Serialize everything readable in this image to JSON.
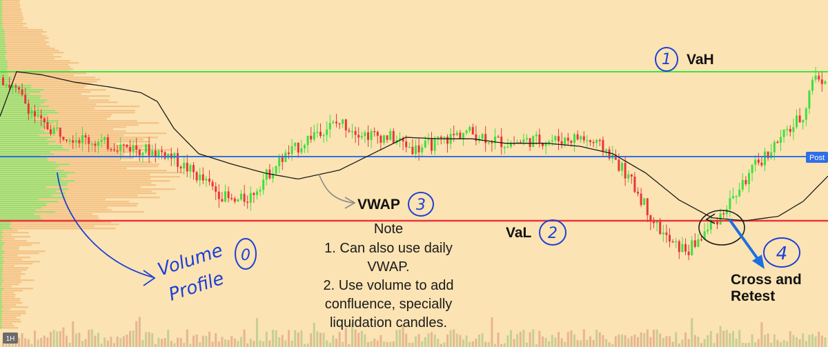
{
  "timeframe": "1H",
  "price_tag": "Post",
  "annotations": {
    "vah": {
      "label": "VaH",
      "num": "1"
    },
    "val": {
      "label": "VaL",
      "num": "2"
    },
    "vwap": {
      "label": "VWAP",
      "num": "3"
    },
    "cross": {
      "label_line1": "Cross and",
      "label_line2": "Retest",
      "num": "4"
    },
    "volume_profile": {
      "line1": "Volume",
      "line2": "Profile",
      "num": "0"
    }
  },
  "note": {
    "title": "Note",
    "lines": [
      "1. Can also use daily",
      "VWAP.",
      "2. Use volume to add",
      "confluence, specially",
      "liquidation candles."
    ]
  },
  "colors": {
    "background": "#fbe3b3",
    "up_candle": "#3ee03e",
    "down_candle": "#e8353a",
    "vah_line": "#39e639",
    "val_line": "#e8353a",
    "mid_line": "#2f6ee8",
    "vwap_line": "#1a1a1a",
    "profile_up": "#8fe06a",
    "profile_down": "#f2b97a",
    "annotation_blue": "#1c3fd6"
  },
  "chart_data": {
    "type": "candlestick",
    "timeframe": "1H",
    "levels": [
      {
        "name": "VaH",
        "style": "green"
      },
      {
        "name": "Post",
        "style": "blue"
      },
      {
        "name": "VaL",
        "style": "red"
      }
    ],
    "price_path": [
      [
        0,
        0.96
      ],
      [
        0.02,
        0.86
      ],
      [
        0.05,
        0.64
      ],
      [
        0.09,
        0.56
      ],
      [
        0.12,
        0.52
      ],
      [
        0.16,
        0.49
      ],
      [
        0.2,
        0.45
      ],
      [
        0.23,
        0.33
      ],
      [
        0.26,
        0.2
      ],
      [
        0.28,
        0.12
      ],
      [
        0.3,
        0.16
      ],
      [
        0.32,
        0.3
      ],
      [
        0.34,
        0.42
      ],
      [
        0.36,
        0.5
      ],
      [
        0.38,
        0.6
      ],
      [
        0.41,
        0.66
      ],
      [
        0.44,
        0.58
      ],
      [
        0.47,
        0.56
      ],
      [
        0.5,
        0.48
      ],
      [
        0.53,
        0.53
      ],
      [
        0.56,
        0.6
      ],
      [
        0.58,
        0.57
      ],
      [
        0.61,
        0.52
      ],
      [
        0.64,
        0.54
      ],
      [
        0.67,
        0.54
      ],
      [
        0.7,
        0.56
      ],
      [
        0.73,
        0.48
      ],
      [
        0.75,
        0.35
      ],
      [
        0.77,
        0.18
      ],
      [
        0.79,
        -0.02
      ],
      [
        0.81,
        -0.16
      ],
      [
        0.83,
        -0.2
      ],
      [
        0.85,
        -0.08
      ],
      [
        0.87,
        0.05
      ],
      [
        0.89,
        0.2
      ],
      [
        0.91,
        0.36
      ],
      [
        0.93,
        0.48
      ],
      [
        0.95,
        0.6
      ],
      [
        0.97,
        0.72
      ],
      [
        0.98,
        0.96
      ],
      [
        1.0,
        0.95
      ]
    ],
    "vwap_path": [
      [
        0,
        0.7
      ],
      [
        0.02,
        1.0
      ],
      [
        0.05,
        0.98
      ],
      [
        0.09,
        0.93
      ],
      [
        0.13,
        0.9
      ],
      [
        0.17,
        0.86
      ],
      [
        0.19,
        0.8
      ],
      [
        0.21,
        0.62
      ],
      [
        0.24,
        0.45
      ],
      [
        0.28,
        0.38
      ],
      [
        0.32,
        0.32
      ],
      [
        0.36,
        0.28
      ],
      [
        0.41,
        0.34
      ],
      [
        0.45,
        0.45
      ],
      [
        0.49,
        0.56
      ],
      [
        0.53,
        0.55
      ],
      [
        0.57,
        0.55
      ],
      [
        0.61,
        0.52
      ],
      [
        0.66,
        0.52
      ],
      [
        0.7,
        0.5
      ],
      [
        0.74,
        0.45
      ],
      [
        0.78,
        0.32
      ],
      [
        0.82,
        0.14
      ],
      [
        0.86,
        0.02
      ],
      [
        0.9,
        0.0
      ],
      [
        0.94,
        0.03
      ],
      [
        0.97,
        0.13
      ],
      [
        1.0,
        0.3
      ]
    ]
  }
}
